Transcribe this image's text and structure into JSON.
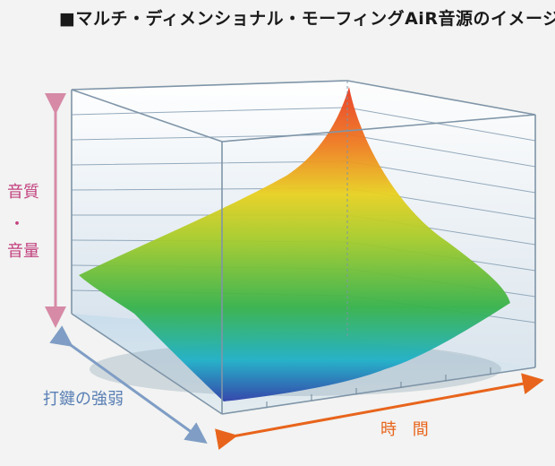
{
  "title": "■マルチ・ディメンショナル・モーフィングAiR音源のイメージ図",
  "labels": {
    "y_axis_line1": "音質",
    "y_axis_dot": "・",
    "y_axis_line2": "音量",
    "depth_axis": "打鍵の強弱",
    "time_axis": "時 間"
  },
  "colors": {
    "y_axis": "#c2407e",
    "depth_axis": "#5a7fb5",
    "time_axis": "#e8641c",
    "surface_low": "#2e3fa8",
    "surface_mid_low": "#1fb0c8",
    "surface_mid": "#36b24a",
    "surface_mid_high": "#e8d020",
    "surface_high": "#e83a22"
  }
}
